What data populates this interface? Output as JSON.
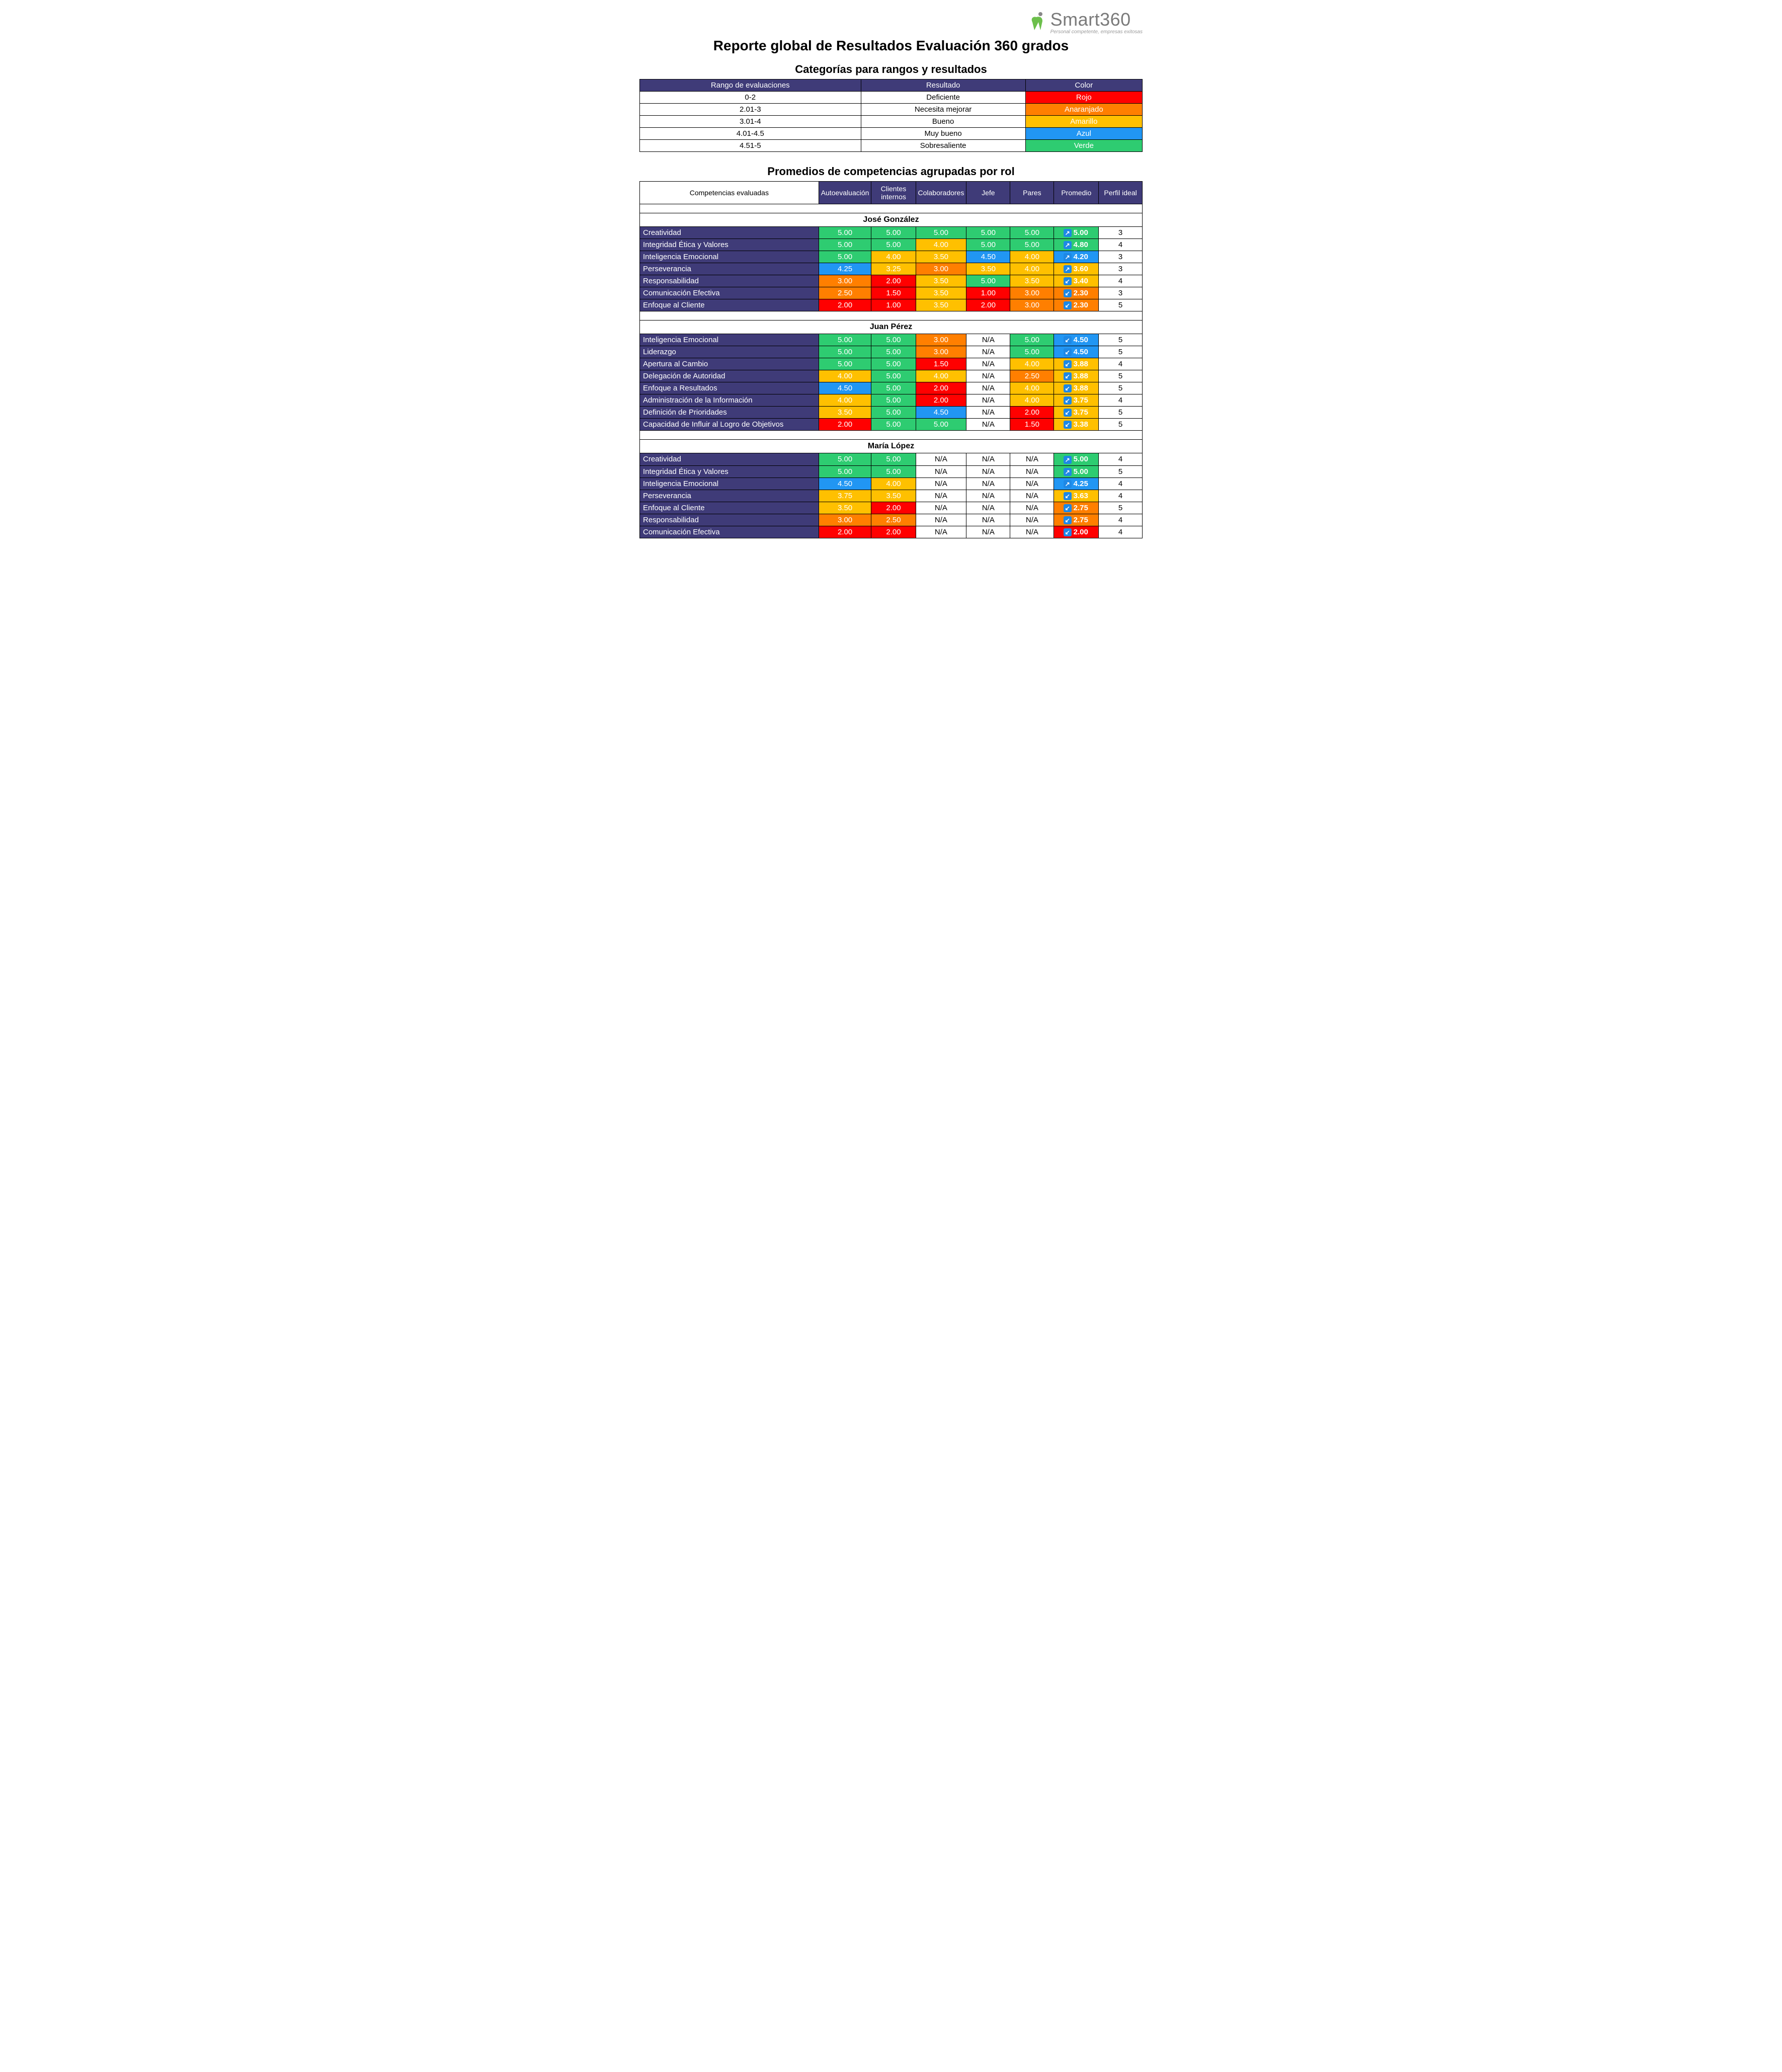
{
  "colors": {
    "header_bg": "#3f3b78",
    "rojo": "#ff0000",
    "anaranjado": "#ff7f00",
    "amarillo": "#ffc000",
    "azul": "#2196f3",
    "verde": "#2ecc71",
    "white": "#ffffff"
  },
  "logo": {
    "brand": "Smart360",
    "tagline": "Personal competente, empresas exitosas"
  },
  "titles": {
    "main": "Reporte global de Resultados Evaluación 360 grados",
    "legend": "Categorías para rangos y resultados",
    "results": "Promedios de competencias agrupadas por rol"
  },
  "legend": {
    "headers": [
      "Rango de evaluaciones",
      "Resultado",
      "Color"
    ],
    "rows": [
      {
        "range": "0-2",
        "result": "Deficiente",
        "color_label": "Rojo",
        "color_key": "rojo"
      },
      {
        "range": "2.01-3",
        "result": "Necesita mejorar",
        "color_label": "Anaranjado",
        "color_key": "anaranjado"
      },
      {
        "range": "3.01-4",
        "result": "Bueno",
        "color_label": "Amarillo",
        "color_key": "amarillo"
      },
      {
        "range": "4.01-4.5",
        "result": "Muy bueno",
        "color_label": "Azul",
        "color_key": "azul"
      },
      {
        "range": "4.51-5",
        "result": "Sobresaliente",
        "color_label": "Verde",
        "color_key": "verde"
      }
    ]
  },
  "results": {
    "headers": [
      "Competencias evaluadas",
      "Autoevaluación",
      "Clientes internos",
      "Colaboradores",
      "Jefe",
      "Pares",
      "Promedio",
      "Perfil ideal"
    ],
    "people": [
      {
        "name": "José González",
        "rows": [
          {
            "label": "Creatividad",
            "vals": [
              "5.00",
              "5.00",
              "5.00",
              "5.00",
              "5.00"
            ],
            "prom": "5.00",
            "dir": "up",
            "ideal": "3"
          },
          {
            "label": "Integridad Ética y Valores",
            "vals": [
              "5.00",
              "5.00",
              "4.00",
              "5.00",
              "5.00"
            ],
            "prom": "4.80",
            "dir": "up",
            "ideal": "4"
          },
          {
            "label": "Inteligencia Emocional",
            "vals": [
              "5.00",
              "4.00",
              "3.50",
              "4.50",
              "4.00"
            ],
            "prom": "4.20",
            "dir": "up",
            "ideal": "3"
          },
          {
            "label": "Perseverancia",
            "vals": [
              "4.25",
              "3.25",
              "3.00",
              "3.50",
              "4.00"
            ],
            "prom": "3.60",
            "dir": "up",
            "ideal": "3"
          },
          {
            "label": "Responsabilidad",
            "vals": [
              "3.00",
              "2.00",
              "3.50",
              "5.00",
              "3.50"
            ],
            "prom": "3.40",
            "dir": "down",
            "ideal": "4"
          },
          {
            "label": "Comunicación Efectiva",
            "vals": [
              "2.50",
              "1.50",
              "3.50",
              "1.00",
              "3.00"
            ],
            "prom": "2.30",
            "dir": "down",
            "ideal": "3"
          },
          {
            "label": "Enfoque al Cliente",
            "vals": [
              "2.00",
              "1.00",
              "3.50",
              "2.00",
              "3.00"
            ],
            "prom": "2.30",
            "dir": "down",
            "ideal": "5"
          }
        ]
      },
      {
        "name": "Juan Pérez",
        "rows": [
          {
            "label": "Inteligencia Emocional",
            "vals": [
              "5.00",
              "5.00",
              "3.00",
              "N/A",
              "5.00"
            ],
            "prom": "4.50",
            "dir": "down",
            "ideal": "5"
          },
          {
            "label": "Liderazgo",
            "vals": [
              "5.00",
              "5.00",
              "3.00",
              "N/A",
              "5.00"
            ],
            "prom": "4.50",
            "dir": "down",
            "ideal": "5"
          },
          {
            "label": "Apertura al Cambio",
            "vals": [
              "5.00",
              "5.00",
              "1.50",
              "N/A",
              "4.00"
            ],
            "prom": "3.88",
            "dir": "down",
            "ideal": "4"
          },
          {
            "label": "Delegación de Autoridad",
            "vals": [
              "4.00",
              "5.00",
              "4.00",
              "N/A",
              "2.50"
            ],
            "prom": "3.88",
            "dir": "down",
            "ideal": "5"
          },
          {
            "label": "Enfoque a Resultados",
            "vals": [
              "4.50",
              "5.00",
              "2.00",
              "N/A",
              "4.00"
            ],
            "prom": "3.88",
            "dir": "down",
            "ideal": "5"
          },
          {
            "label": "Administración de la Información",
            "vals": [
              "4.00",
              "5.00",
              "2.00",
              "N/A",
              "4.00"
            ],
            "prom": "3.75",
            "dir": "down",
            "ideal": "4"
          },
          {
            "label": "Definición de Prioridades",
            "vals": [
              "3.50",
              "5.00",
              "4.50",
              "N/A",
              "2.00"
            ],
            "prom": "3.75",
            "dir": "down",
            "ideal": "5"
          },
          {
            "label": "Capacidad de Influir al Logro de Objetivos",
            "vals": [
              "2.00",
              "5.00",
              "5.00",
              "N/A",
              "1.50"
            ],
            "prom": "3.38",
            "dir": "down",
            "ideal": "5"
          }
        ]
      },
      {
        "name": "María López",
        "rows": [
          {
            "label": "Creatividad",
            "vals": [
              "5.00",
              "5.00",
              "N/A",
              "N/A",
              "N/A"
            ],
            "prom": "5.00",
            "dir": "up",
            "ideal": "4"
          },
          {
            "label": "Integridad Ética y Valores",
            "vals": [
              "5.00",
              "5.00",
              "N/A",
              "N/A",
              "N/A"
            ],
            "prom": "5.00",
            "dir": "up",
            "ideal": "5"
          },
          {
            "label": "Inteligencia Emocional",
            "vals": [
              "4.50",
              "4.00",
              "N/A",
              "N/A",
              "N/A"
            ],
            "prom": "4.25",
            "dir": "up",
            "ideal": "4"
          },
          {
            "label": "Perseverancia",
            "vals": [
              "3.75",
              "3.50",
              "N/A",
              "N/A",
              "N/A"
            ],
            "prom": "3.63",
            "dir": "down",
            "ideal": "4"
          },
          {
            "label": "Enfoque al Cliente",
            "vals": [
              "3.50",
              "2.00",
              "N/A",
              "N/A",
              "N/A"
            ],
            "prom": "2.75",
            "dir": "down",
            "ideal": "5"
          },
          {
            "label": "Responsabilidad",
            "vals": [
              "3.00",
              "2.50",
              "N/A",
              "N/A",
              "N/A"
            ],
            "prom": "2.75",
            "dir": "down",
            "ideal": "4"
          },
          {
            "label": "Comunicación Efectiva",
            "vals": [
              "2.00",
              "2.00",
              "N/A",
              "N/A",
              "N/A"
            ],
            "prom": "2.00",
            "dir": "down",
            "ideal": "4"
          }
        ]
      }
    ]
  }
}
